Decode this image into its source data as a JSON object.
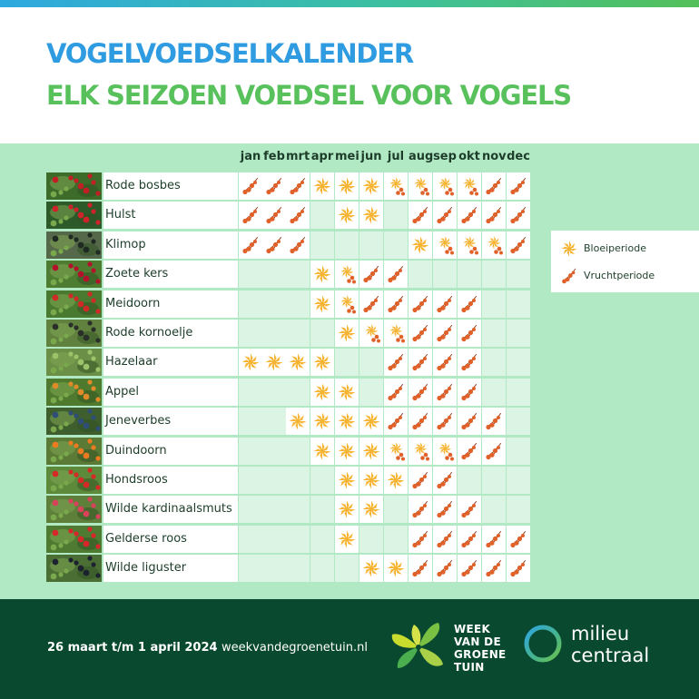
{
  "header": {
    "title": "VOGELVOEDSELKALENDER",
    "subtitle": "ELK SEIZOEN VOEDSEL VOOR VOGELS"
  },
  "months": [
    "jan",
    "feb",
    "mrt",
    "apr",
    "mei",
    "jun",
    "jul",
    "aug",
    "sep",
    "okt",
    "nov",
    "dec"
  ],
  "legend": {
    "bloom": "Bloeiperiode",
    "fruit": "Vruchtperiode"
  },
  "colors": {
    "title_blue": "#2f9be0",
    "title_green": "#58c15c",
    "bloom": "#f6b432",
    "fruit": "#e0622a",
    "table_bg": "#b2e9c5",
    "footer_bg": "#094930"
  },
  "plants": [
    {
      "name": "Rode bosbes",
      "photo": "red-berries-photo",
      "months": [
        "F",
        "F",
        "F",
        "B",
        "B",
        "B",
        "BF",
        "BF",
        "BF",
        "BF",
        "F",
        "F"
      ]
    },
    {
      "name": "Hulst",
      "photo": "holly-photo",
      "months": [
        "F",
        "F",
        "F",
        "",
        "B",
        "B",
        "",
        "F",
        "F",
        "F",
        "F",
        "F"
      ]
    },
    {
      "name": "Klimop",
      "photo": "ivy-photo",
      "months": [
        "F",
        "F",
        "F",
        "",
        "",
        "",
        "",
        "B",
        "BF",
        "BF",
        "BF",
        "F"
      ]
    },
    {
      "name": "Zoete kers",
      "photo": "sweet-cherry-photo",
      "months": [
        "",
        "",
        "",
        "B",
        "BF",
        "F",
        "F",
        "",
        "",
        "",
        "",
        ""
      ]
    },
    {
      "name": "Meidoorn",
      "photo": "hawthorn-photo",
      "months": [
        "",
        "",
        "",
        "B",
        "BF",
        "F",
        "F",
        "F",
        "F",
        "F",
        "",
        ""
      ]
    },
    {
      "name": "Rode kornoelje",
      "photo": "red-dogwood-photo",
      "months": [
        "",
        "",
        "",
        "",
        "B",
        "BF",
        "BF",
        "F",
        "F",
        "F",
        "",
        ""
      ]
    },
    {
      "name": "Hazelaar",
      "photo": "hazel-photo",
      "months": [
        "B",
        "B",
        "B",
        "B",
        "",
        "",
        "F",
        "F",
        "F",
        "F",
        "",
        ""
      ]
    },
    {
      "name": "Appel",
      "photo": "apple-photo",
      "months": [
        "",
        "",
        "",
        "B",
        "B",
        "",
        "F",
        "F",
        "F",
        "F",
        "",
        ""
      ]
    },
    {
      "name": "Jeneverbes",
      "photo": "juniper-photo",
      "months": [
        "",
        "",
        "B",
        "B",
        "B",
        "B",
        "F",
        "F",
        "F",
        "F",
        "F",
        ""
      ]
    },
    {
      "name": "Duindoorn",
      "photo": "sea-buckthorn-photo",
      "months": [
        "",
        "",
        "",
        "B",
        "B",
        "B",
        "BF",
        "BF",
        "BF",
        "F",
        "F",
        ""
      ]
    },
    {
      "name": "Hondsroos",
      "photo": "dog-rose-photo",
      "months": [
        "",
        "",
        "",
        "",
        "B",
        "B",
        "B",
        "F",
        "F",
        "",
        "",
        ""
      ]
    },
    {
      "name": "Wilde kardinaalsmuts",
      "photo": "spindle-photo",
      "months": [
        "",
        "",
        "",
        "",
        "B",
        "B",
        "",
        "F",
        "F",
        "F",
        "",
        ""
      ]
    },
    {
      "name": "Gelderse roos",
      "photo": "guelder-rose-photo",
      "months": [
        "",
        "",
        "",
        "",
        "B",
        "",
        "",
        "F",
        "F",
        "F",
        "F",
        "F"
      ]
    },
    {
      "name": "Wilde liguster",
      "photo": "wild-privet-photo",
      "months": [
        "",
        "",
        "",
        "",
        "",
        "B",
        "B",
        "F",
        "F",
        "F",
        "F",
        "F"
      ]
    }
  ],
  "footer": {
    "dates": "26 maart t/m 1 april 2024",
    "url": "weekvandegroenetuin.nl",
    "logo_week_lines": [
      "WEEK",
      "VAN DE",
      "GROENE",
      "TUIN"
    ],
    "logo_milieu_lines": [
      "milieu",
      "centraal"
    ]
  }
}
